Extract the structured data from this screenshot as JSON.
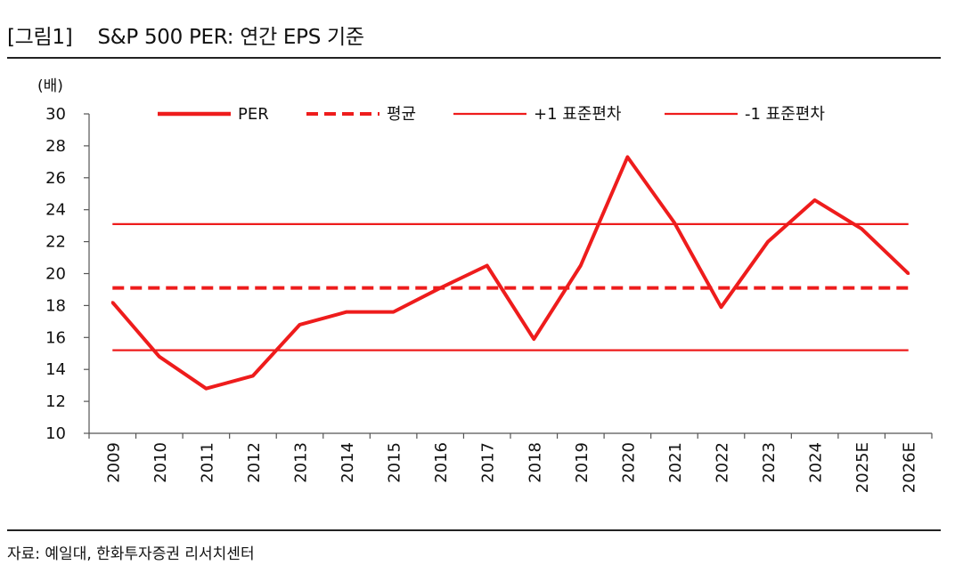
{
  "figure": {
    "title": "[그림1]    S&P 500 PER: 연간 EPS 기준",
    "source": "자료: 예일대, 한화투자증권 리서치센터"
  },
  "chart_data": {
    "type": "line",
    "title": "S&P 500 PER: 연간 EPS 기준",
    "ylabel": "(배)",
    "xlabel": "",
    "ylim": [
      10,
      30
    ],
    "yticks": [
      10,
      12,
      14,
      16,
      18,
      20,
      22,
      24,
      26,
      28,
      30
    ],
    "categories": [
      "2009",
      "2010",
      "2011",
      "2012",
      "2013",
      "2014",
      "2015",
      "2016",
      "2017",
      "2018",
      "2019",
      "2020",
      "2021",
      "2022",
      "2023",
      "2024",
      "2025E",
      "2026E"
    ],
    "legend_position": "top",
    "grid": false,
    "series": [
      {
        "name": "PER",
        "style": "solid-thick",
        "color": "#ee1c1c",
        "values": [
          18.2,
          14.8,
          12.8,
          13.6,
          16.8,
          17.6,
          17.6,
          19.1,
          20.5,
          15.9,
          20.5,
          27.3,
          23.2,
          17.9,
          22.0,
          24.6,
          22.8,
          20.0
        ]
      },
      {
        "name": "평균",
        "style": "dashed",
        "color": "#ee1c1c",
        "constant": 19.1
      },
      {
        "name": "+1 표준편차",
        "style": "solid-thin",
        "color": "#ee1c1c",
        "constant": 23.1
      },
      {
        "name": "-1 표준편차",
        "style": "solid-thin",
        "color": "#ee1c1c",
        "constant": 15.2
      }
    ]
  }
}
